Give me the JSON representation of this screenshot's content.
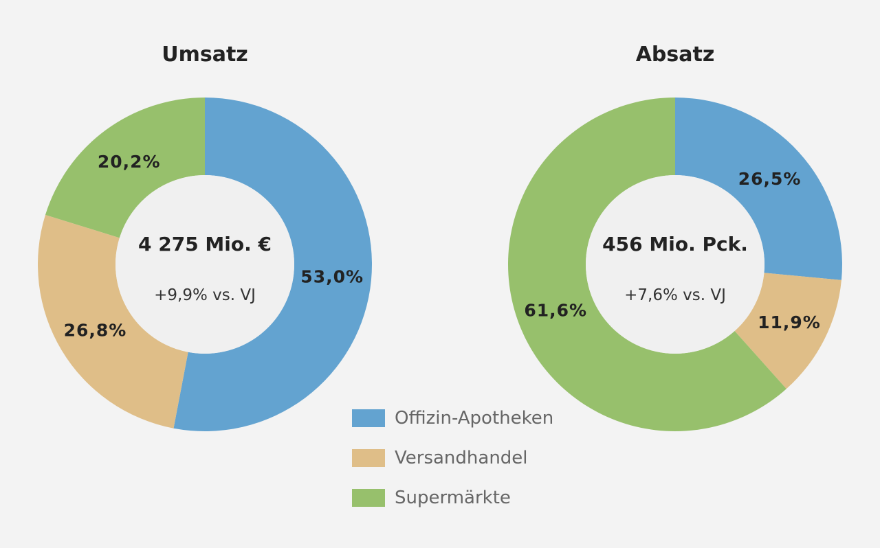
{
  "colors": {
    "offizin": "#63a3d0",
    "versand": "#dfbe88",
    "supermarkt": "#97c06c",
    "background": "#f3f3f3",
    "hole": "#f0f0f0"
  },
  "legend": [
    {
      "label": "Offizin-Apotheken",
      "color_key": "offizin"
    },
    {
      "label": "Versandhandel",
      "color_key": "versand"
    },
    {
      "label": "Supermärkte",
      "color_key": "supermarkt"
    }
  ],
  "chart_data": [
    {
      "type": "pie",
      "title": "Umsatz",
      "center_value": "4 275 Mio. €",
      "center_change": "+9,9% vs. VJ",
      "categories": [
        "Offizin-Apotheken",
        "Versandhandel",
        "Supermärkte"
      ],
      "values": [
        53.0,
        26.8,
        20.2
      ],
      "labels": [
        "53,0%",
        "26,8%",
        "20,2%"
      ]
    },
    {
      "type": "pie",
      "title": "Absatz",
      "center_value": "456 Mio. Pck.",
      "center_change": "+7,6% vs. VJ",
      "categories": [
        "Offizin-Apotheken",
        "Versandhandel",
        "Supermärkte"
      ],
      "values": [
        26.5,
        11.9,
        61.6
      ],
      "labels": [
        "26,5%",
        "11,9%",
        "61,6%"
      ]
    }
  ]
}
